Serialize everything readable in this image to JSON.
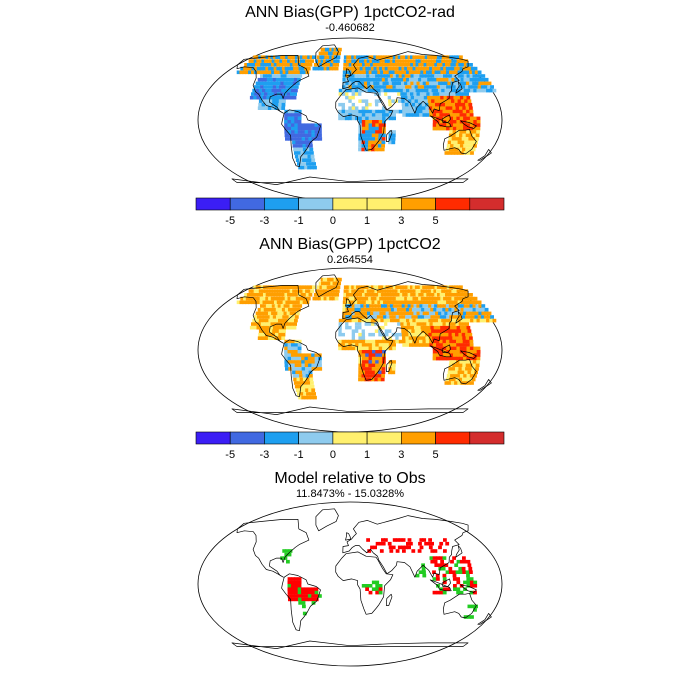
{
  "panels": [
    {
      "title": "ANN Bias(GPP) 1pctCO2-rad",
      "subtitle": "-0.460682",
      "palette": "bias1",
      "colorbar": true
    },
    {
      "title": "ANN Bias(GPP) 1pctCO2",
      "subtitle": "0.264554",
      "palette": "bias2",
      "colorbar": true
    },
    {
      "title": "Model relative to Obs",
      "subtitle": "11.8473% - 15.0328%",
      "palette": "relobs",
      "colorbar": false
    }
  ],
  "colorbar": {
    "colors": [
      "#3b1ef5",
      "#4169e1",
      "#1e9ff0",
      "#8ecbee",
      "#fff06e",
      "#fff06e",
      "#ff9f00",
      "#ff2b00",
      "#d42d2d"
    ],
    "tick_labels": [
      "-5",
      "-3",
      "-1",
      "0",
      "1",
      "3",
      "5"
    ]
  },
  "colors": {
    "ocean": "#ffffff",
    "coast": "#000000",
    "positive": "#ff0000",
    "negative": "#22cc22"
  }
}
